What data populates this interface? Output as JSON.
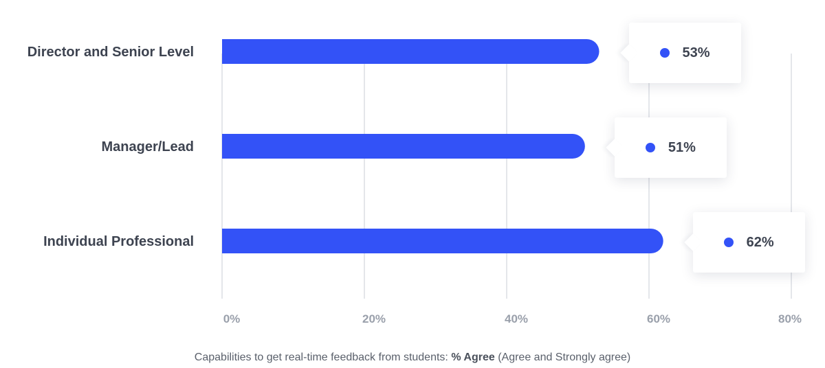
{
  "chart_data": {
    "type": "bar",
    "orientation": "horizontal",
    "categories": [
      "Director and Senior Level",
      "Manager/Lead",
      "Individual Professional"
    ],
    "values": [
      53,
      51,
      62
    ],
    "value_labels": [
      "53%",
      "51%",
      "62%"
    ],
    "xlim": [
      0,
      80
    ],
    "x_ticks": [
      0,
      20,
      40,
      60,
      80
    ],
    "x_tick_labels": [
      "0%",
      "20%",
      "40%",
      "60%",
      "80%"
    ],
    "grid": true,
    "bar_color": "#3352f7",
    "grid_color": "#e4e6ea",
    "caption": {
      "prefix": "Capabilities to get real-time feedback from students: ",
      "emphasis": "% Agree",
      "suffix": " (Agree and Strongly agree)"
    }
  }
}
